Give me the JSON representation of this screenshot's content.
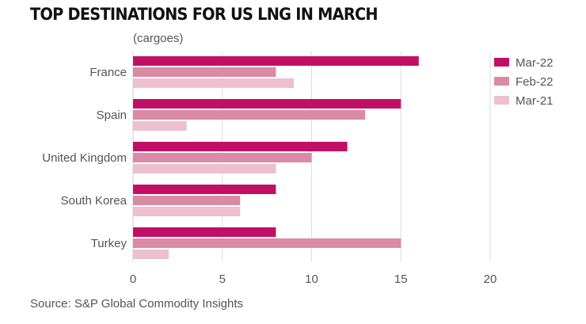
{
  "chart_data": {
    "type": "bar",
    "orientation": "horizontal",
    "title": "TOP DESTINATIONS FOR US LNG IN MARCH",
    "unit_label": "(cargoes)",
    "source": "Source: S&P Global Commodity Insights",
    "categories": [
      "France",
      "Spain",
      "United Kingdom",
      "South Korea",
      "Turkey"
    ],
    "series": [
      {
        "name": "Mar-22",
        "color": "#c20f66",
        "values": [
          16,
          15,
          12,
          8,
          8
        ]
      },
      {
        "name": "Feb-22",
        "color": "#db8aa4",
        "values": [
          8,
          13,
          10,
          6,
          15
        ]
      },
      {
        "name": "Mar-21",
        "color": "#ecc0ce",
        "values": [
          9,
          3,
          8,
          6,
          2
        ]
      }
    ],
    "xlim": [
      0,
      20
    ],
    "xticks": [
      "0",
      "5",
      "10",
      "15",
      "20"
    ],
    "xlabel": "",
    "ylabel": "",
    "grid": true,
    "legend_position": "top-right"
  }
}
